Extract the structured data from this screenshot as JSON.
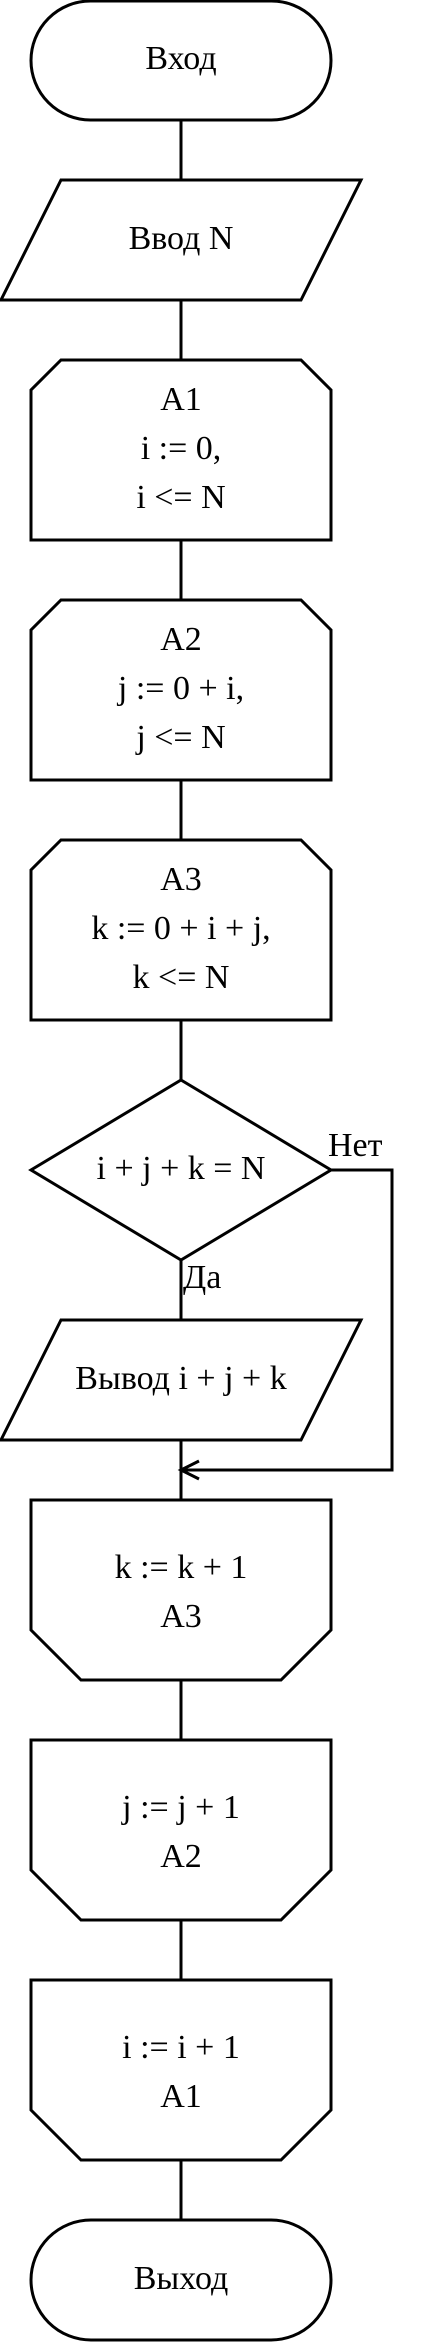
{
  "nodes": {
    "start": {
      "label": "Вход"
    },
    "input": {
      "label": "Ввод N"
    },
    "a1": {
      "lines": [
        "A1",
        "i := 0,",
        "i <= N"
      ]
    },
    "a2": {
      "lines": [
        "A2",
        "j := 0 + i,",
        "j <= N"
      ]
    },
    "a3": {
      "lines": [
        "A3",
        "k := 0 + i + j,",
        "k <= N"
      ]
    },
    "decision": {
      "label": "i + j + k = N",
      "no_label": "Нет",
      "yes_label": "Да"
    },
    "output": {
      "label": "Вывод i + j + k"
    },
    "a3_end": {
      "lines": [
        "k := k + 1",
        "A3"
      ]
    },
    "a2_end": {
      "lines": [
        "j := j + 1",
        "A2"
      ]
    },
    "a1_end": {
      "lines": [
        "i := i + 1",
        "A1"
      ]
    },
    "end": {
      "label": "Выход"
    }
  },
  "colors": {
    "stroke": "#000000",
    "fill": "#ffffff"
  }
}
